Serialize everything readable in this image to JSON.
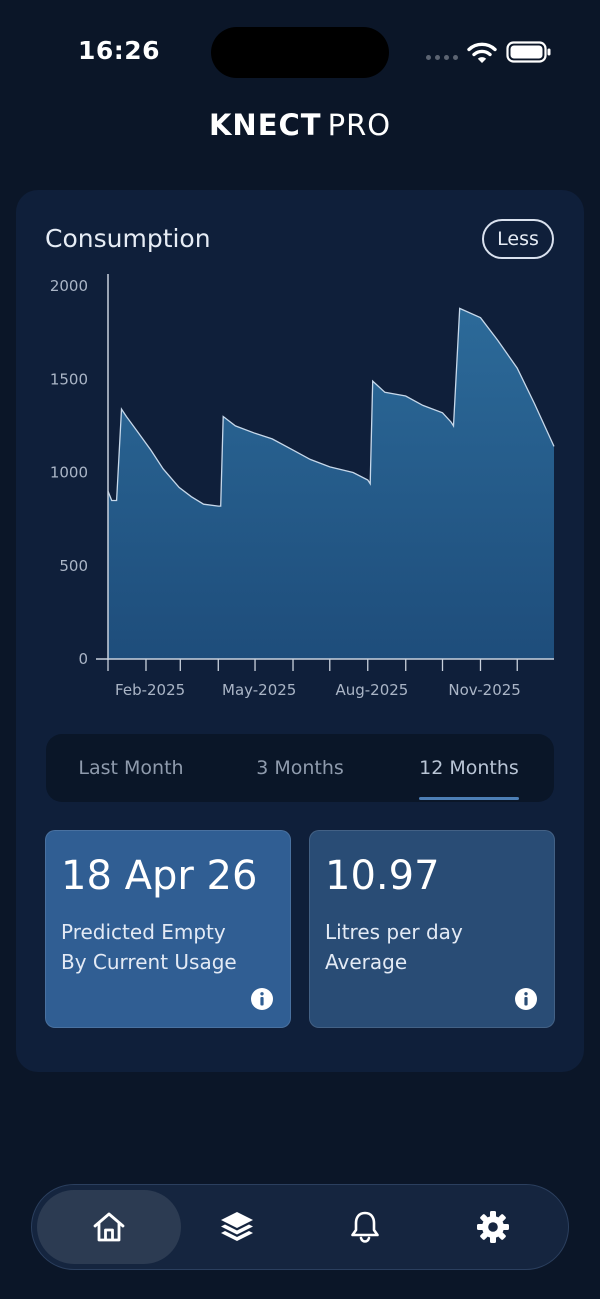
{
  "status_bar": {
    "time": "16:26"
  },
  "app": {
    "logo_bold": "KNECT",
    "logo_light": "PRO"
  },
  "consumption": {
    "title": "Consumption",
    "less_label": "Less"
  },
  "chart_data": {
    "type": "area",
    "title": "",
    "xlabel": "",
    "ylabel": "",
    "ylim": [
      0,
      2000
    ],
    "yticks": [
      0,
      500,
      1000,
      1500,
      2000
    ],
    "xtick_labels": [
      "Feb-2025",
      "May-2025",
      "Aug-2025",
      "Nov-2025"
    ],
    "xlim": [
      "2025-01-01",
      "2025-12-31"
    ],
    "x": [
      "2025-01-01",
      "2025-01-04",
      "2025-01-08",
      "2025-01-12",
      "2025-01-16",
      "2025-01-25",
      "2025-02-05",
      "2025-02-15",
      "2025-02-28",
      "2025-03-10",
      "2025-03-20",
      "2025-04-01",
      "2025-04-03",
      "2025-04-05",
      "2025-04-15",
      "2025-05-01",
      "2025-05-15",
      "2025-06-01",
      "2025-06-15",
      "2025-07-01",
      "2025-07-20",
      "2025-08-01",
      "2025-08-03",
      "2025-08-05",
      "2025-08-15",
      "2025-09-01",
      "2025-09-15",
      "2025-10-01",
      "2025-10-08",
      "2025-10-10",
      "2025-10-15",
      "2025-11-01",
      "2025-11-15",
      "2025-12-01",
      "2025-12-15",
      "2025-12-31"
    ],
    "series": [
      {
        "values": [
          900,
          850,
          850,
          1340,
          1300,
          1220,
          1120,
          1020,
          920,
          870,
          830,
          820,
          820,
          1300,
          1250,
          1210,
          1180,
          1120,
          1070,
          1030,
          1000,
          960,
          940,
          1490,
          1430,
          1410,
          1360,
          1320,
          1270,
          1250,
          1880,
          1830,
          1710,
          1560,
          1370,
          1140
        ]
      }
    ],
    "colors": {
      "fill_top": "#2c6a99",
      "fill_bottom": "#1e4d7b",
      "line": "#c7d8ea",
      "axis": "#c9d1dc"
    }
  },
  "range_tabs": [
    {
      "label": "Last Month",
      "active": false
    },
    {
      "label": "3 Months",
      "active": false
    },
    {
      "label": "12 Months",
      "active": true
    }
  ],
  "stats": [
    {
      "value": "18 Apr 26",
      "label_line1": "Predicted Empty",
      "label_line2": "By Current Usage",
      "icon": "info-icon"
    },
    {
      "value": "10.97",
      "label_line1": "Litres per day",
      "label_line2": "Average",
      "icon": "info-icon"
    }
  ],
  "nav": [
    {
      "icon": "home-icon",
      "active": true
    },
    {
      "icon": "layers-icon",
      "active": false
    },
    {
      "icon": "bell-icon",
      "active": false
    },
    {
      "icon": "gear-icon",
      "active": false
    }
  ]
}
